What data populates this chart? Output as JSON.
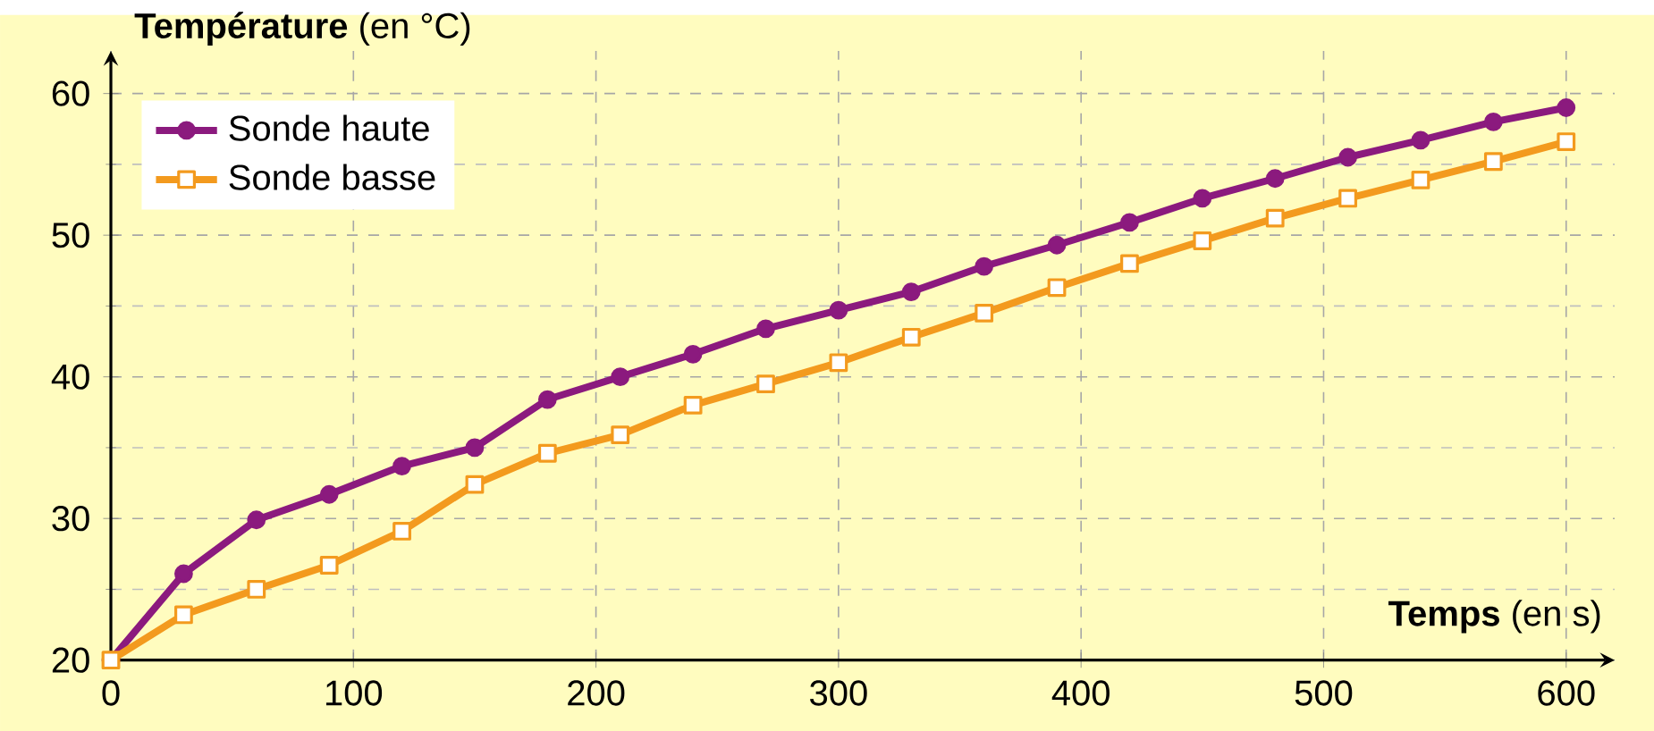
{
  "chart_data": {
    "type": "line",
    "xlabel": "**Temps** (en s)",
    "ylabel": "**Température** (en °C)",
    "x": [
      0,
      30,
      60,
      90,
      120,
      150,
      180,
      210,
      240,
      270,
      300,
      330,
      360,
      390,
      420,
      450,
      480,
      510,
      540,
      570,
      600
    ],
    "series": [
      {
        "name": "Sonde haute",
        "color": "#8b1a7e",
        "marker": "circle",
        "values": [
          20,
          26.1,
          29.9,
          31.7,
          33.7,
          35.0,
          38.4,
          40.0,
          41.6,
          43.4,
          44.7,
          46.0,
          47.8,
          49.3,
          50.9,
          52.6,
          54.0,
          55.5,
          56.7,
          58.0,
          59.0
        ]
      },
      {
        "name": "Sonde basse",
        "color": "#f39a1e",
        "marker": "square",
        "values": [
          20,
          23.2,
          25.0,
          26.7,
          29.1,
          32.4,
          34.6,
          35.9,
          38.0,
          39.5,
          41.0,
          42.8,
          44.5,
          46.3,
          48.0,
          49.6,
          51.2,
          52.6,
          53.9,
          55.2,
          56.6
        ]
      }
    ],
    "xlim": [
      0,
      620
    ],
    "ylim": [
      20,
      63
    ],
    "xticks": [
      0,
      100,
      200,
      300,
      400,
      500,
      600
    ],
    "yticks": [
      20,
      30,
      40,
      50,
      60
    ],
    "grid": true,
    "legend": "top left",
    "line_style": "solid"
  }
}
